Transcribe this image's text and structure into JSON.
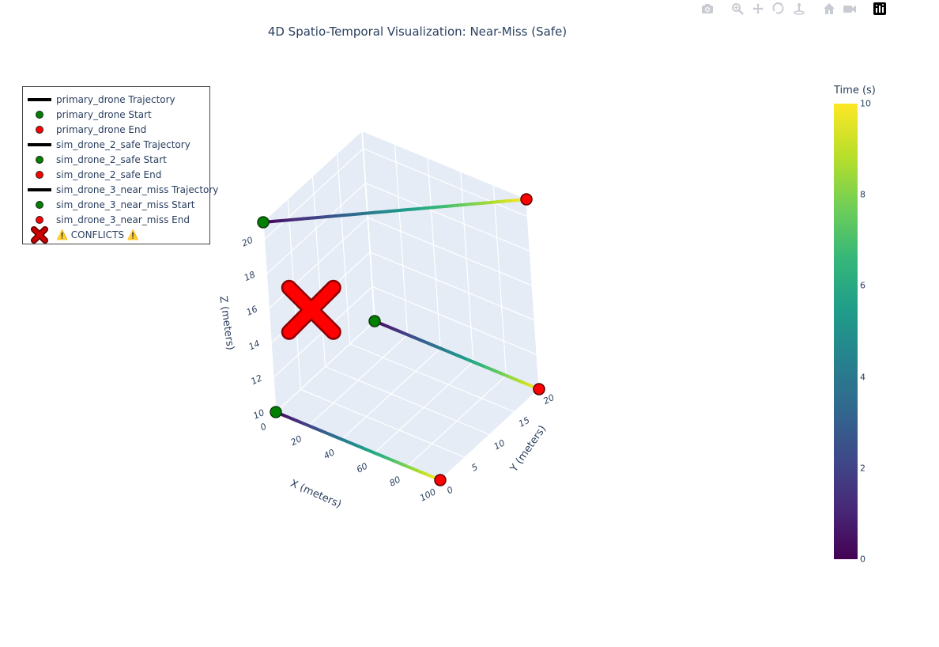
{
  "toolbar": {
    "icons": [
      "camera-icon",
      "zoom-icon",
      "pan-icon",
      "orbit-icon",
      "turntable-icon",
      "home-icon",
      "camera-reset-icon",
      "plotly-logo-icon"
    ]
  },
  "chart_data": {
    "type": "scatter3d",
    "title": "4D Spatio-Temporal Visualization: Near-Miss (Safe)",
    "xlabel": "X (meters)",
    "ylabel": "Y (meters)",
    "zlabel": "Z (meters)",
    "xlim": [
      0,
      100
    ],
    "ylim": [
      0,
      20
    ],
    "zlim": [
      10,
      21
    ],
    "x_ticks": [
      "0",
      "20",
      "40",
      "60",
      "80",
      "100"
    ],
    "y_ticks": [
      "0",
      "5",
      "10",
      "15",
      "20"
    ],
    "z_ticks": [
      "10",
      "12",
      "14",
      "16",
      "18",
      "20"
    ],
    "colorbar": {
      "title": "Time (s)",
      "range": [
        0,
        10
      ],
      "ticks": [
        "0",
        "2",
        "4",
        "6",
        "8",
        "10"
      ],
      "colorscale": "Viridis"
    },
    "series": [
      {
        "name": "primary_drone Trajectory",
        "x": [
          0,
          100
        ],
        "y": [
          0,
          0
        ],
        "z": [
          10,
          10
        ],
        "t": [
          0,
          10
        ]
      },
      {
        "name": "sim_drone_2_safe Trajectory",
        "x": [
          0,
          100
        ],
        "y": [
          20,
          20
        ],
        "z": [
          10,
          10
        ],
        "t": [
          0,
          10
        ]
      },
      {
        "name": "sim_drone_3_near_miss Trajectory",
        "x": [
          0,
          100
        ],
        "y": [
          0,
          20
        ],
        "z": [
          21,
          21
        ],
        "t": [
          0,
          10
        ]
      }
    ],
    "conflict": {
      "name": "⚠️ CONFLICTS ⚠️",
      "x": 10,
      "y": 5,
      "z": 15
    },
    "legend": {
      "placement": "top-left",
      "items": [
        {
          "label": "primary_drone Trajectory",
          "symbol": "line",
          "color": "#000000"
        },
        {
          "label": "primary_drone Start",
          "symbol": "dot",
          "color": "#008000"
        },
        {
          "label": "primary_drone End",
          "symbol": "dot",
          "color": "#ff0000"
        },
        {
          "label": "sim_drone_2_safe Trajectory",
          "symbol": "line",
          "color": "#000000"
        },
        {
          "label": "sim_drone_2_safe Start",
          "symbol": "dot",
          "color": "#008000"
        },
        {
          "label": "sim_drone_2_safe End",
          "symbol": "dot",
          "color": "#ff0000"
        },
        {
          "label": "sim_drone_3_near_miss Trajectory",
          "symbol": "line",
          "color": "#000000"
        },
        {
          "label": "sim_drone_3_near_miss Start",
          "symbol": "dot",
          "color": "#008000"
        },
        {
          "label": "sim_drone_3_near_miss End",
          "symbol": "dot",
          "color": "#ff0000"
        },
        {
          "label": "⚠️ CONFLICTS ⚠️",
          "symbol": "x",
          "color": "#cc0000"
        }
      ]
    }
  }
}
